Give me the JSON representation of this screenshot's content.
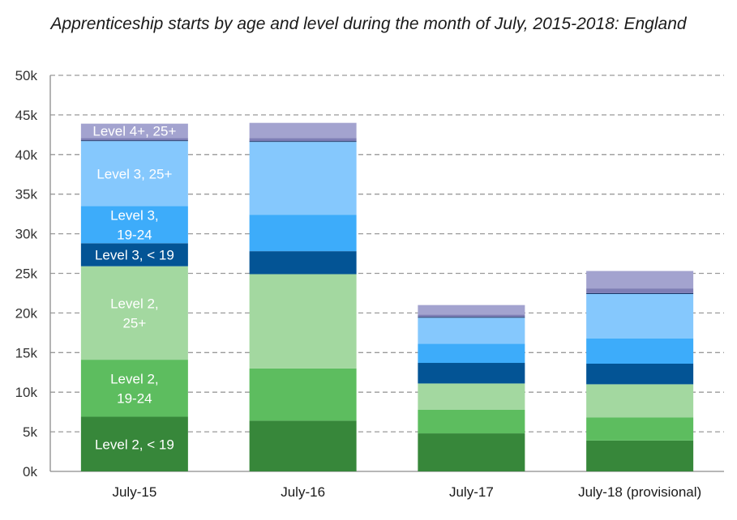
{
  "chart_data": {
    "type": "bar",
    "stacked": true,
    "title": "Apprenticeship starts by age and level during the month of July, 2015-2018: England",
    "xlabel": "",
    "ylabel": "",
    "ylim": [
      0,
      50000
    ],
    "yticks": [
      "0k",
      "5k",
      "10k",
      "15k",
      "20k",
      "25k",
      "30k",
      "35k",
      "40k",
      "45k",
      "50k"
    ],
    "grid": true,
    "legend": "none (segment labels inside first bar)",
    "categories": [
      "July-15",
      "July-16",
      "July-17",
      "July-18 (provisional)"
    ],
    "series": [
      {
        "key": "l2u19",
        "label": [
          "Level 2, < 19"
        ],
        "color": "#37873a",
        "values": [
          6900,
          6400,
          4800,
          3900
        ]
      },
      {
        "key": "l2_1924",
        "label": [
          "Level 2,",
          "19-24"
        ],
        "color": "#5dbd5f",
        "values": [
          7200,
          6600,
          3000,
          2900
        ]
      },
      {
        "key": "l2_25",
        "label": [
          "Level 2,",
          "25+"
        ],
        "color": "#a3d8a0",
        "values": [
          11800,
          11900,
          3300,
          4200
        ]
      },
      {
        "key": "l3u19",
        "label": [
          "Level 3, < 19"
        ],
        "color": "#035495",
        "values": [
          2900,
          2900,
          2600,
          2600
        ]
      },
      {
        "key": "l3_1924",
        "label": [
          "Level 3,",
          "19-24"
        ],
        "color": "#3dacfa",
        "values": [
          4700,
          4600,
          2400,
          3200
        ]
      },
      {
        "key": "l3_25",
        "label": [
          "Level 3, 25+"
        ],
        "color": "#85c8fd",
        "values": [
          8200,
          9200,
          3300,
          5600
        ]
      },
      {
        "key": "l4u19",
        "label": [],
        "color": "#0a2a5e",
        "values": [
          100,
          100,
          100,
          100
        ]
      },
      {
        "key": "l4_1924",
        "label": [],
        "color": "#7e7eb5",
        "values": [
          300,
          400,
          300,
          600
        ]
      },
      {
        "key": "l4_25",
        "label": [
          "Level 4+, 25+"
        ],
        "color": "#a3a3cf",
        "values": [
          1800,
          1900,
          1200,
          2200
        ]
      }
    ]
  }
}
